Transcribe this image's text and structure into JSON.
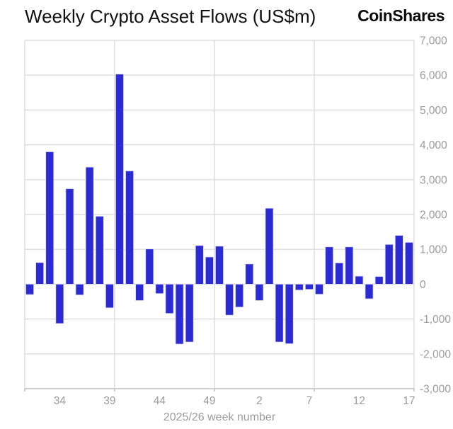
{
  "header": {
    "title": "Weekly Crypto Asset Flows (US$m)",
    "logo": "CoinShares"
  },
  "chart_data": {
    "type": "bar",
    "title": "Weekly Crypto Asset Flows (US$m)",
    "xlabel": "2025/26 week number",
    "ylabel": "",
    "categories": [
      "31",
      "32",
      "33",
      "34",
      "35",
      "36",
      "37",
      "38",
      "39",
      "40",
      "41",
      "42",
      "43",
      "44",
      "45",
      "46",
      "47",
      "48",
      "49",
      "50",
      "51",
      "52",
      "1",
      "2",
      "3",
      "4",
      "5",
      "6",
      "7",
      "8",
      "9",
      "10",
      "11",
      "12",
      "13",
      "14",
      "15",
      "16",
      "17"
    ],
    "values": [
      -300,
      620,
      3800,
      -1130,
      2740,
      -310,
      3360,
      1950,
      -680,
      6030,
      3250,
      -470,
      1010,
      -270,
      -840,
      -1720,
      -1660,
      1110,
      780,
      1090,
      -890,
      -660,
      580,
      -470,
      2180,
      -1660,
      -1710,
      -170,
      -150,
      -290,
      1070,
      610,
      1070,
      230,
      -420,
      220,
      1140,
      1400,
      1200
    ],
    "x_tick_indices": [
      3,
      8,
      13,
      18,
      23,
      28,
      33,
      38
    ],
    "x_tick_labels": [
      "34",
      "39",
      "44",
      "49",
      "2",
      "7",
      "12",
      "17"
    ],
    "y_ticks": [
      7000,
      6000,
      5000,
      4000,
      3000,
      2000,
      1000,
      0,
      -1000,
      -2000,
      -3000
    ],
    "y_tick_labels": [
      "7,000",
      "6,000",
      "5,000",
      "4,000",
      "3,000",
      "2,000",
      "1,000",
      "0",
      "-1,000",
      "-2,000",
      "-3,000"
    ],
    "ylim": [
      -3000,
      7000
    ],
    "vertical_grid_boundaries": [
      9,
      19,
      29
    ],
    "legend": "none",
    "grid": "on",
    "colors": {
      "bar_fill": "#2b2ad3",
      "bar_stroke": "#d8d8ef",
      "gridline": "#d6d6d6",
      "axis_line": "#b0b0b0",
      "tick_label": "#9b9b9b",
      "title_text": "#111111"
    }
  }
}
